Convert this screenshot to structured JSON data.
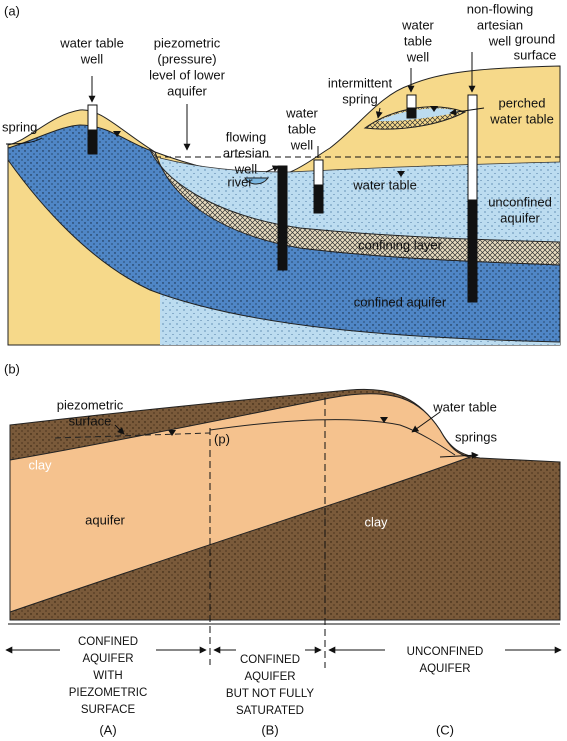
{
  "panel_a": {
    "label": "(a)",
    "annotations": [
      {
        "lines": [
          "water table",
          "well"
        ]
      },
      {
        "lines": [
          "piezometric",
          "(pressure)",
          "level of lower",
          "aquifer"
        ]
      },
      {
        "lines": [
          "spring"
        ]
      },
      {
        "lines": [
          "flowing",
          "artesian",
          "well"
        ]
      },
      {
        "lines": [
          "water",
          "table",
          "well"
        ]
      },
      {
        "lines": [
          "river"
        ]
      },
      {
        "lines": [
          "intermittent",
          "spring"
        ]
      },
      {
        "lines": [
          "water",
          "table",
          "well"
        ]
      },
      {
        "lines": [
          "non-flowing",
          "artesian",
          "well"
        ]
      },
      {
        "lines": [
          "ground",
          "surface"
        ]
      },
      {
        "lines": [
          "perched",
          "water table"
        ]
      },
      {
        "lines": [
          "water table"
        ]
      },
      {
        "lines": [
          "unconfined",
          "aquifer"
        ]
      },
      {
        "lines": [
          "confining layer"
        ]
      },
      {
        "lines": [
          "confined aquifer"
        ]
      }
    ]
  },
  "panel_b": {
    "label": "(b)",
    "annotations": [
      {
        "lines": [
          "piezometric",
          "surface"
        ]
      },
      {
        "lines": [
          "water table"
        ]
      },
      {
        "lines": [
          "springs"
        ]
      },
      {
        "lines": [
          "(p)"
        ]
      },
      {
        "lines": [
          "clay"
        ]
      },
      {
        "lines": [
          "aquifer"
        ]
      },
      {
        "lines": [
          "clay"
        ]
      }
    ],
    "zones": [
      {
        "lines": [
          "CONFINED",
          "AQUIFER",
          "WITH",
          "PIEZOMETRIC",
          "SURFACE"
        ],
        "letter": "(A)"
      },
      {
        "lines": [
          "CONFINED",
          "AQUIFER",
          "BUT NOT FULLY",
          "SATURATED"
        ],
        "letter": "(B)"
      },
      {
        "lines": [
          "UNCONFINED",
          "AQUIFER"
        ],
        "letter": "(C)"
      }
    ]
  }
}
